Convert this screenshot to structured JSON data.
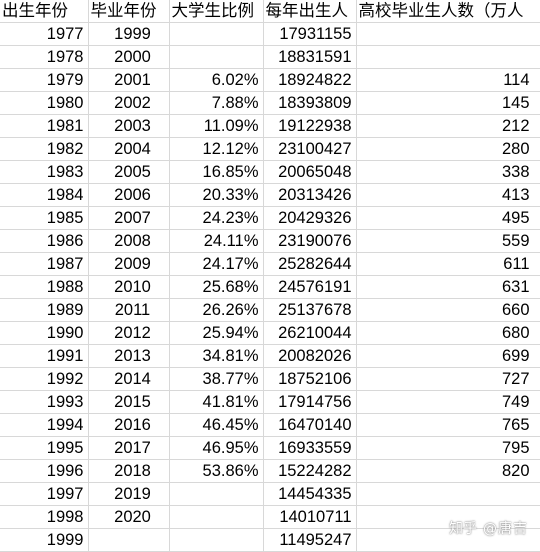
{
  "headers": [
    "出生年份",
    "毕业年份",
    "大学生比例",
    "每年出生人",
    "高校毕业生人数（万人"
  ],
  "rows": [
    [
      "1977",
      "1999",
      "",
      "17931155",
      ""
    ],
    [
      "1978",
      "2000",
      "",
      "18831591",
      ""
    ],
    [
      "1979",
      "2001",
      "6.02%",
      "18924822",
      "114"
    ],
    [
      "1980",
      "2002",
      "7.88%",
      "18393809",
      "145"
    ],
    [
      "1981",
      "2003",
      "11.09%",
      "19122938",
      "212"
    ],
    [
      "1982",
      "2004",
      "12.12%",
      "23100427",
      "280"
    ],
    [
      "1983",
      "2005",
      "16.85%",
      "20065048",
      "338"
    ],
    [
      "1984",
      "2006",
      "20.33%",
      "20313426",
      "413"
    ],
    [
      "1985",
      "2007",
      "24.23%",
      "20429326",
      "495"
    ],
    [
      "1986",
      "2008",
      "24.11%",
      "23190076",
      "559"
    ],
    [
      "1987",
      "2009",
      "24.17%",
      "25282644",
      "611"
    ],
    [
      "1988",
      "2010",
      "25.68%",
      "24576191",
      "631"
    ],
    [
      "1989",
      "2011",
      "26.26%",
      "25137678",
      "660"
    ],
    [
      "1990",
      "2012",
      "25.94%",
      "26210044",
      "680"
    ],
    [
      "1991",
      "2013",
      "34.81%",
      "20082026",
      "699"
    ],
    [
      "1992",
      "2014",
      "38.77%",
      "18752106",
      "727"
    ],
    [
      "1993",
      "2015",
      "41.81%",
      "17914756",
      "749"
    ],
    [
      "1994",
      "2016",
      "46.45%",
      "16470140",
      "765"
    ],
    [
      "1995",
      "2017",
      "46.95%",
      "16933559",
      "795"
    ],
    [
      "1996",
      "2018",
      "53.86%",
      "15224282",
      "820"
    ],
    [
      "1997",
      "2019",
      "",
      "14454335",
      ""
    ],
    [
      "1998",
      "2020",
      "",
      "14010711",
      ""
    ],
    [
      "1999",
      "",
      "",
      "11495247",
      ""
    ]
  ],
  "watermark": {
    "site": "知乎",
    "author": "@唐吉"
  },
  "colors": {
    "grid": "#d8d8d8",
    "text": "#000000",
    "background": "#ffffff"
  }
}
